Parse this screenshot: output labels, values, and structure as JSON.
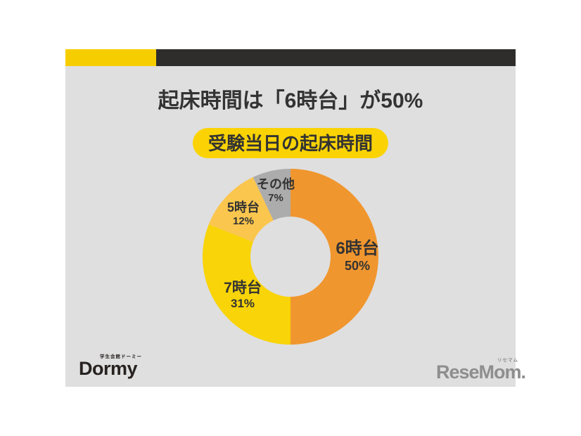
{
  "header": {
    "title": "起床時間は「6時台」が50%",
    "badge": "受験当日の起床時間"
  },
  "chart_data": {
    "type": "pie",
    "subtype": "donut",
    "title": "受験当日の起床時間",
    "unit": "%",
    "start_angle_deg": 0,
    "direction": "clockwise",
    "categories": [
      "6時台",
      "7時台",
      "5時台",
      "その他"
    ],
    "values": [
      50,
      31,
      12,
      7
    ],
    "segments": [
      {
        "label": "6時台",
        "value": 50,
        "pct_label": "50%",
        "color": "#F0962E"
      },
      {
        "label": "7時台",
        "value": 31,
        "pct_label": "31%",
        "color": "#F8D408"
      },
      {
        "label": "5時台",
        "value": 12,
        "pct_label": "12%",
        "color": "#FAC64E"
      },
      {
        "label": "その他",
        "value": 7,
        "pct_label": "7%",
        "color": "#ACACAC"
      }
    ]
  },
  "footer": {
    "dormy_small": "学生会館ドーミー",
    "dormy_text": "Dormy",
    "resemom_small": "リセマム",
    "resemom_text": "ReseMom."
  },
  "colors": {
    "card_bg": "#DFDFDF",
    "bar_yellow": "#F6CE00",
    "bar_dark": "#2E2D2C",
    "badge_yellow": "#FBD304",
    "text_dark": "#333333",
    "dormy_logo": "#272220",
    "resemom_logo": "#8E8E8E"
  }
}
